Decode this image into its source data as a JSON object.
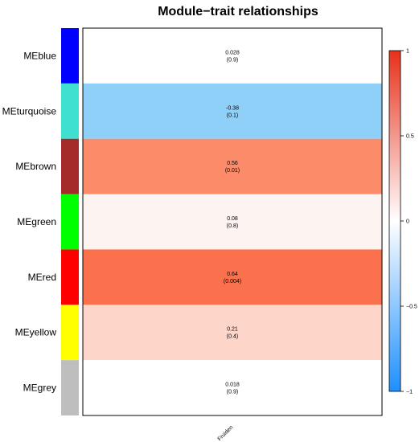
{
  "chart_data": {
    "type": "heatmap",
    "title": "Module−trait relationships",
    "columns": [
      "Fruiden"
    ],
    "rows": [
      {
        "label": "MEblue",
        "module_color": "#0000ff",
        "value": 0.028,
        "value_text": "0.028",
        "p_text": "(0.9)",
        "cell_color": "#ffffff"
      },
      {
        "label": "MEturquoise",
        "module_color": "#40e0d0",
        "value": -0.38,
        "value_text": "-0.38",
        "p_text": "(0.1)",
        "cell_color": "#8fd0f8"
      },
      {
        "label": "MEbrown",
        "module_color": "#a52a2a",
        "value": 0.56,
        "value_text": "0.56",
        "p_text": "(0.01)",
        "cell_color": "#fc8b6a"
      },
      {
        "label": "MEgreen",
        "module_color": "#00ff00",
        "value": 0.08,
        "value_text": "0.08",
        "p_text": "(0.8)",
        "cell_color": "#fdf3f0"
      },
      {
        "label": "MEred",
        "module_color": "#ff0000",
        "value": 0.64,
        "value_text": "0.64",
        "p_text": "(0.004)",
        "cell_color": "#fb714d"
      },
      {
        "label": "MEyellow",
        "module_color": "#ffff00",
        "value": 0.21,
        "value_text": "0.21",
        "p_text": "(0.4)",
        "cell_color": "#fdd5c9"
      },
      {
        "label": "MEgrey",
        "module_color": "#bebebe",
        "value": 0.018,
        "value_text": "0.018",
        "p_text": "(0.9)",
        "cell_color": "#ffffff"
      }
    ],
    "colorbar": {
      "range": [
        -1,
        1
      ],
      "ticks": [
        {
          "value": 1,
          "label": "1"
        },
        {
          "value": 0.5,
          "label": "0.5"
        },
        {
          "value": 0,
          "label": "0"
        },
        {
          "value": -0.5,
          "label": "−0.5"
        },
        {
          "value": -1,
          "label": "−1"
        }
      ],
      "colors": [
        "#1e90ff",
        "#ffffff",
        "#e8301c"
      ]
    }
  }
}
